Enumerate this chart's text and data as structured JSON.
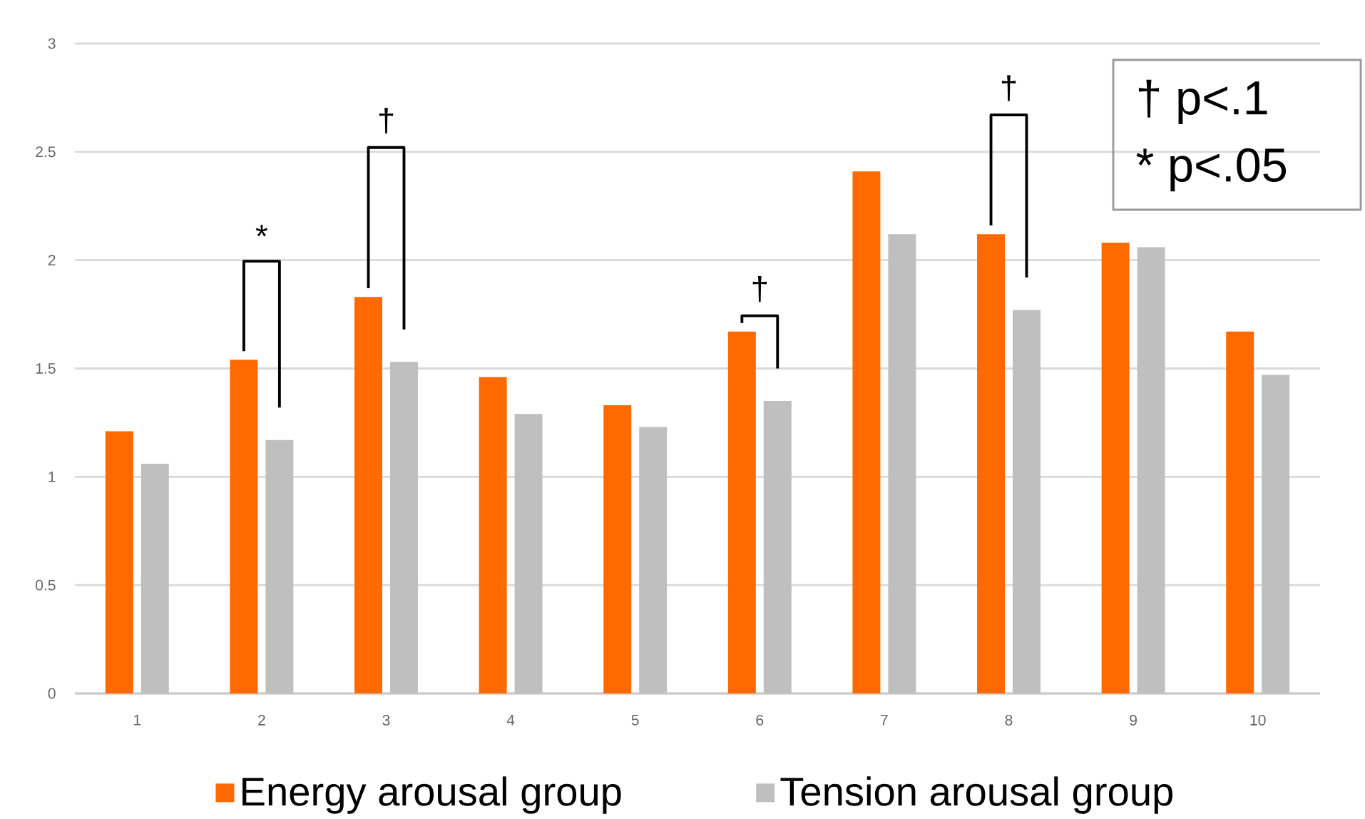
{
  "chart_data": {
    "type": "bar",
    "categories": [
      "1",
      "2",
      "3",
      "4",
      "5",
      "6",
      "7",
      "8",
      "9",
      "10"
    ],
    "series": [
      {
        "name": "Energy arousal group",
        "color": "#ff6a00",
        "values": [
          1.21,
          1.54,
          1.83,
          1.46,
          1.33,
          1.67,
          2.41,
          2.12,
          2.08,
          1.67
        ]
      },
      {
        "name": "Tension arousal group",
        "color": "#bfbfbf",
        "values": [
          1.06,
          1.17,
          1.53,
          1.29,
          1.23,
          1.35,
          2.12,
          1.77,
          2.06,
          1.47
        ]
      }
    ],
    "ylim": [
      0,
      3
    ],
    "yticks": [
      0,
      0.5,
      1,
      1.5,
      2,
      2.5,
      3
    ],
    "grid": "y",
    "legend": "bottom",
    "annotations": [
      "*",
      "†",
      "†",
      "†",
      "† p<.1",
      "* p<.05"
    ]
  }
}
